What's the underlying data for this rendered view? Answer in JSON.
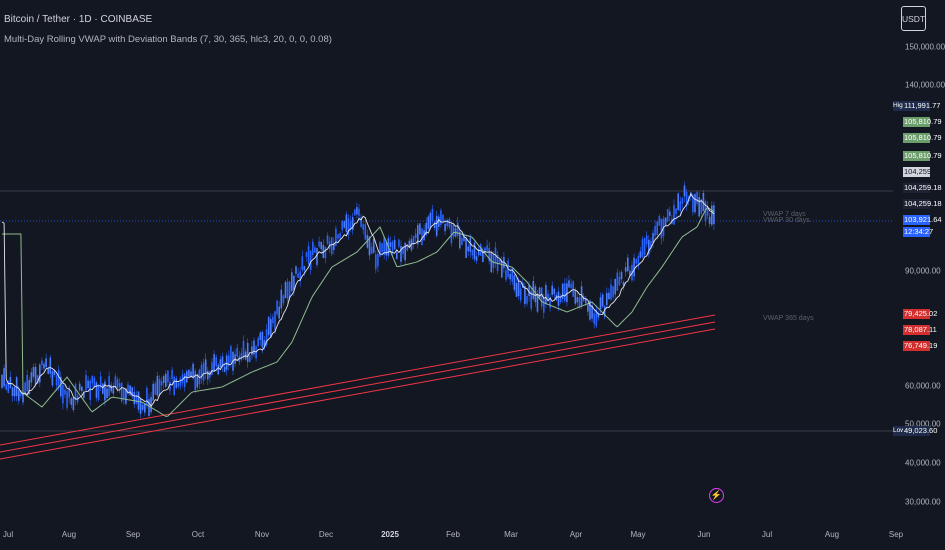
{
  "header": {
    "symbol": "Bitcoin / Tether · 1D · COINBASE",
    "indicator": "Multi-Day Rolling VWAP with Deviation Bands (7, 30, 365, hlc3, 20, 0, 0, 0.08)"
  },
  "currency_button": "USDT",
  "price_axis": {
    "ticks": [
      "150,000.00",
      "140,000.00",
      "90,000.00",
      "60,000.00",
      "50,000.00",
      "40,000.00",
      "30,000.00"
    ],
    "high_label": "High",
    "high_value": "111,991.77",
    "low_label": "Low",
    "low_value": "49,023.60",
    "green_tags": [
      "105,810.79",
      "105,810.79",
      "105,810.79"
    ],
    "dark_tags": [
      "104,259.18",
      "104,259.18",
      "104,259.18"
    ],
    "current_price": "103,921.64",
    "countdown": "12:34:27",
    "red_tags": [
      "79,425.02",
      "78,087.11",
      "76,749.19"
    ]
  },
  "time_axis": {
    "labels": [
      "Jul",
      "Aug",
      "Sep",
      "Oct",
      "Nov",
      "Dec",
      "2025",
      "Feb",
      "Mar",
      "Apr",
      "May",
      "Jun",
      "Jul",
      "Aug",
      "Sep"
    ]
  },
  "chart_labels": {
    "vwap_7": "VWAP 7 days",
    "vwap_30": "VWAP 30 days",
    "vwap_365": "VWAP 365 days"
  },
  "event_icon": "lightning-icon",
  "colors": {
    "background": "#131722",
    "candle": "#2962ff",
    "vwap7": "#e6e6ec",
    "vwap30": "#8fbc8f",
    "vwap365": "#f23645",
    "green_tag": "#6b9e6b",
    "red_tag": "#d32f2f",
    "current_tag": "#2962ff"
  }
}
